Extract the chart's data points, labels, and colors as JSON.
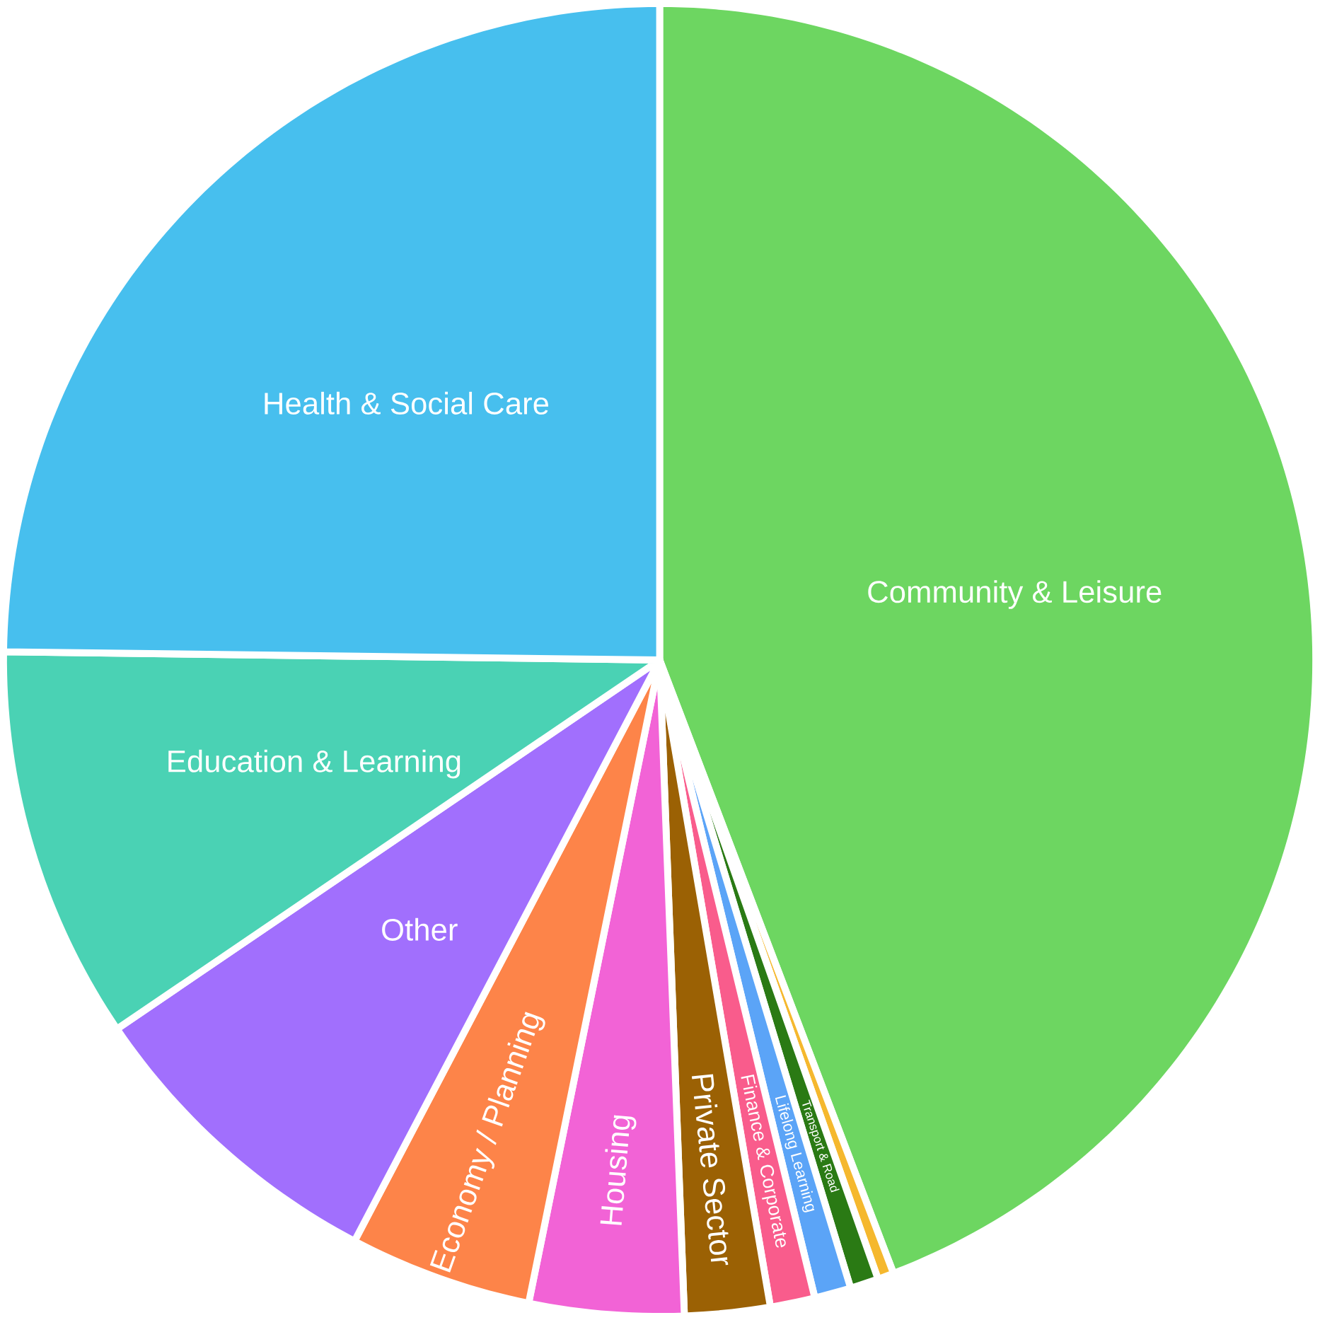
{
  "chart_data": {
    "type": "pie",
    "categories": [
      "Community & Leisure",
      null,
      "Transport & Road",
      "Lifelong Learning",
      "Finance & Corporate",
      "Private Sector",
      "Housing",
      "Economy / Planning",
      "Other",
      "Education & Learning",
      "Health & Social Care"
    ],
    "values": [
      44.2,
      0.4,
      0.7,
      0.9,
      1.1,
      2.1,
      3.8,
      4.5,
      7.8,
      9.7,
      24.8
    ],
    "colors": [
      "#6dd661",
      "#f5b82e",
      "#2a7a14",
      "#5ba4f7",
      "#f95c8c",
      "#9b6104",
      "#f263d6",
      "#fd8449",
      "#a16ffd",
      "#4ad2b4",
      "#47bfee"
    ]
  }
}
